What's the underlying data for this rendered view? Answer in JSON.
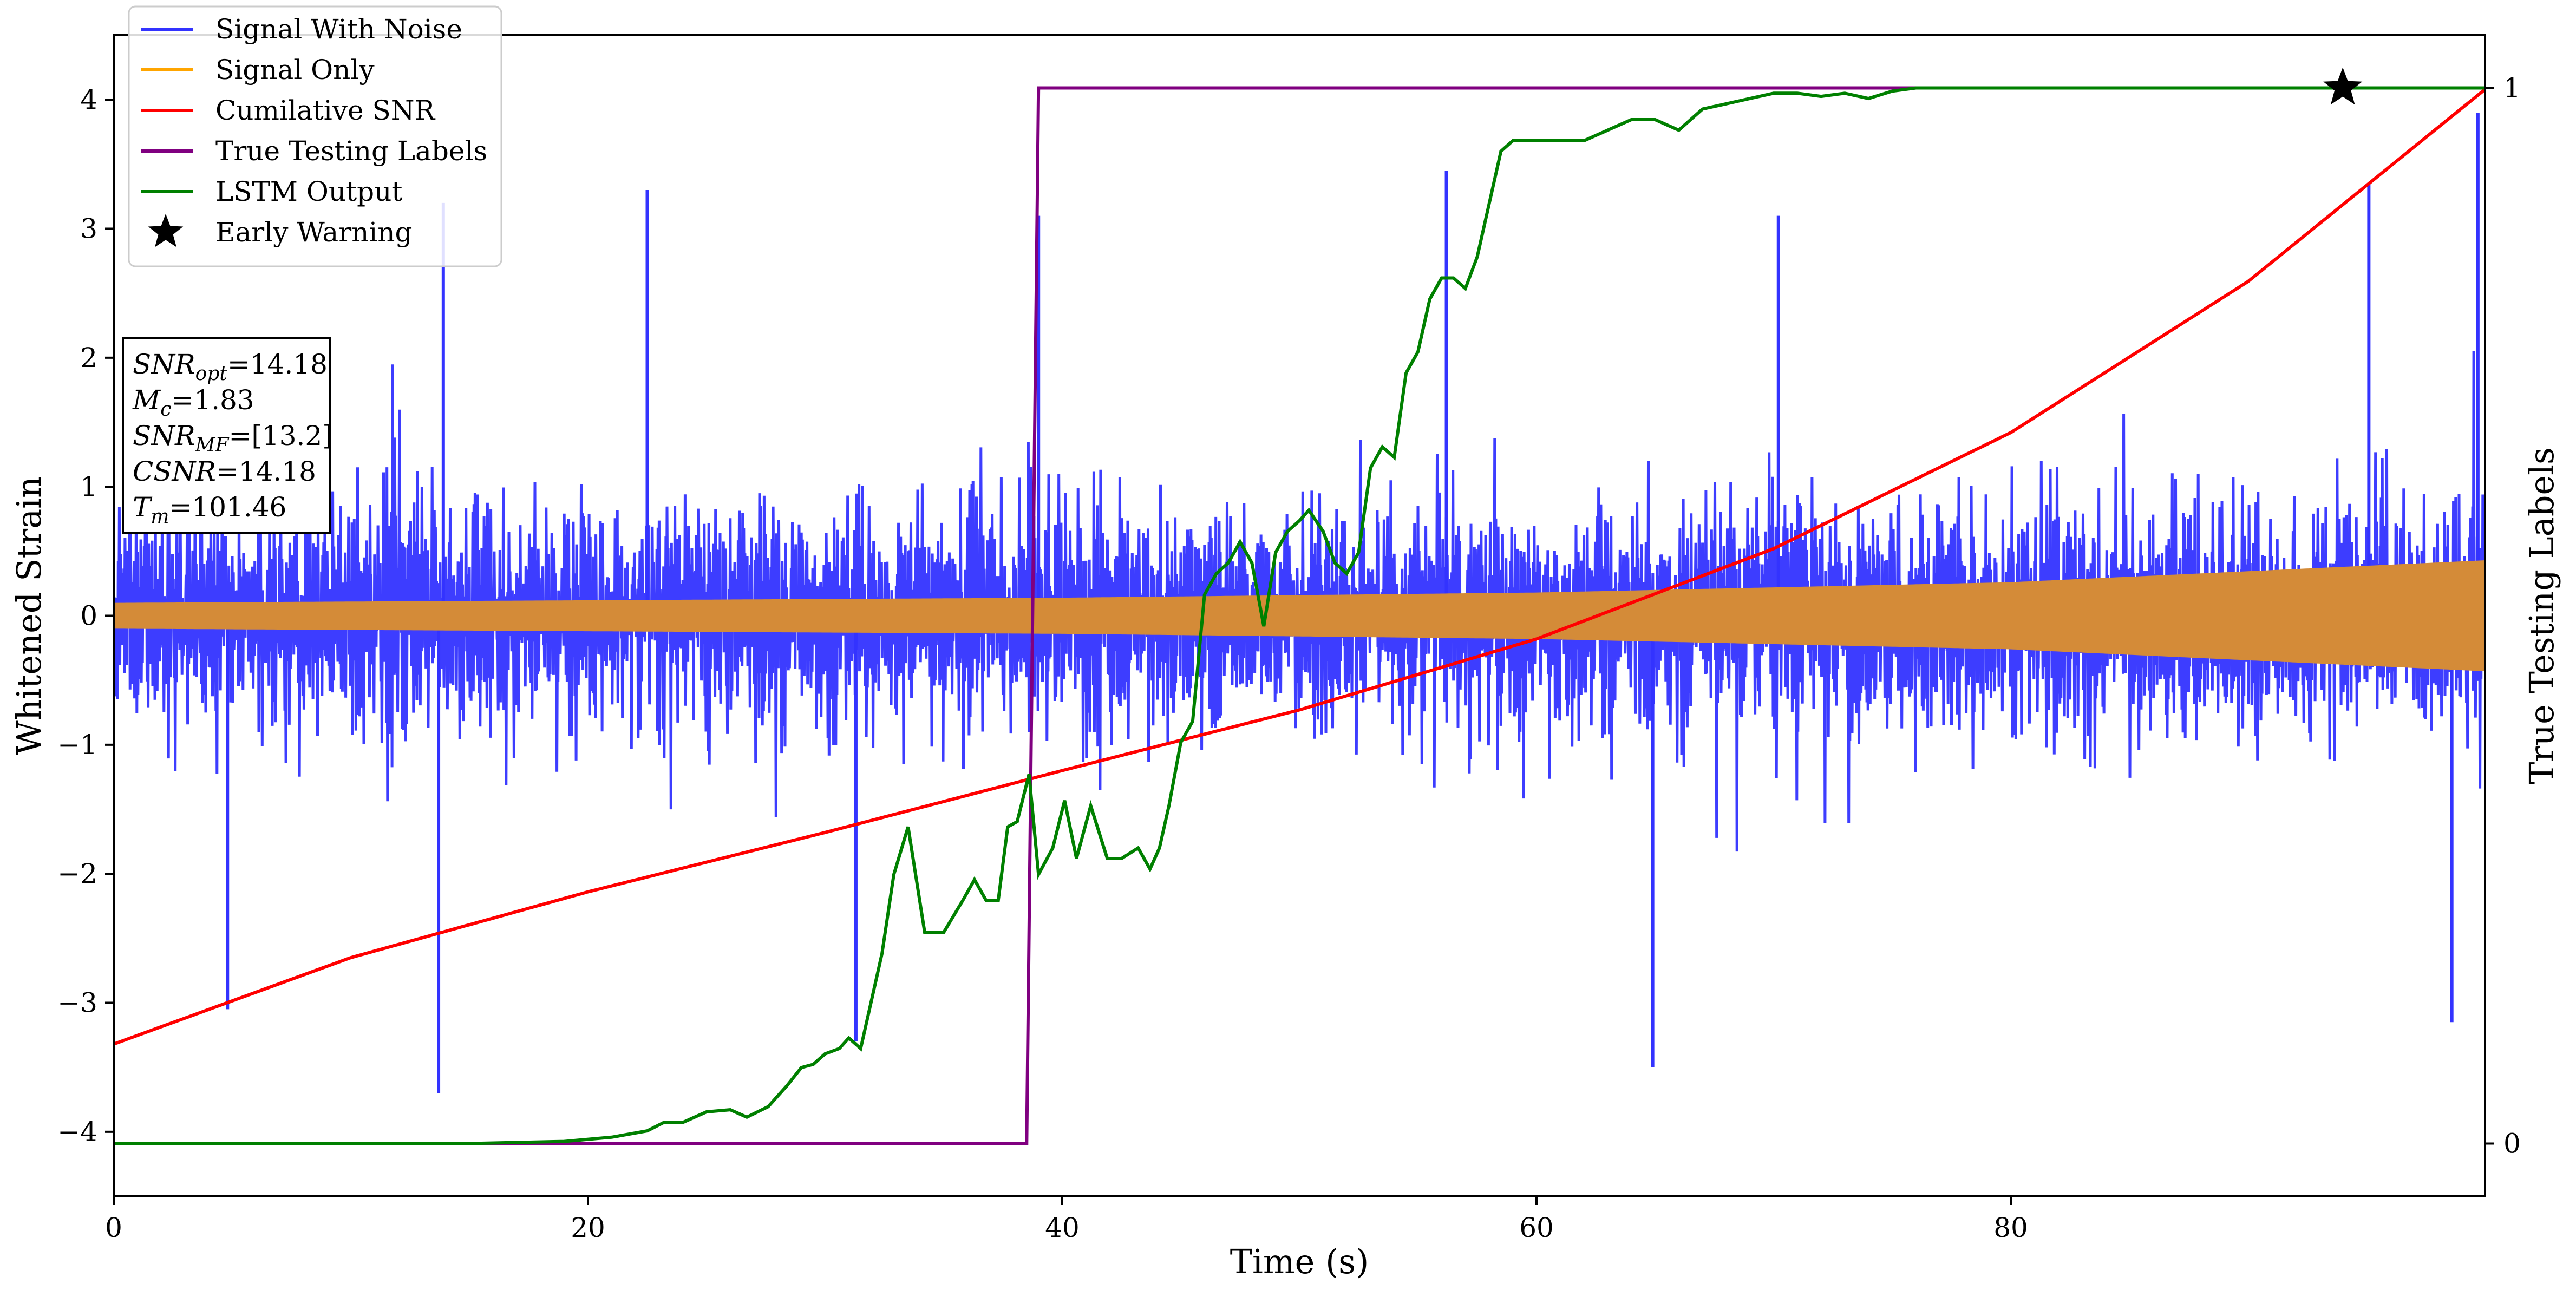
{
  "chart_data": {
    "type": "line",
    "xlabel": "Time (s)",
    "ylabel": "Whitened Strain",
    "ylabel_right": "True Testing Labels",
    "xlim": [
      0,
      100
    ],
    "ylim": [
      -4.5,
      4.5
    ],
    "ylim_right": [
      -0.05,
      1.05
    ],
    "x_ticks": [
      0,
      20,
      40,
      60,
      80
    ],
    "x_tick_labels": [
      "0",
      "20",
      "40",
      "60",
      "80"
    ],
    "y_ticks": [
      -4,
      -3,
      -2,
      -1,
      0,
      1,
      2,
      3,
      4
    ],
    "y_tick_labels": [
      "−4",
      "−3",
      "−2",
      "−1",
      "0",
      "1",
      "2",
      "3",
      "4"
    ],
    "y_right_ticks": [
      0,
      1
    ],
    "y_right_tick_labels": [
      "0",
      "1"
    ],
    "grid": false,
    "legend_position": "top-left",
    "legend": [
      {
        "label": "Signal With Noise",
        "color": "#3333ff",
        "marker": "line"
      },
      {
        "label": "Signal Only",
        "color": "#ffa500",
        "marker": "line"
      },
      {
        "label": "Cumilative SNR",
        "color": "#ff0000",
        "marker": "line"
      },
      {
        "label": "True Testing Labels",
        "color": "#800080",
        "marker": "line"
      },
      {
        "label": "LSTM Output",
        "color": "#008000",
        "marker": "line"
      },
      {
        "label": "Early Warning",
        "color": "#000000",
        "marker": "star"
      }
    ],
    "info_box": [
      {
        "main": "SNR",
        "sub": "opt",
        "rest": "=14.18"
      },
      {
        "main": "M",
        "sub": "c",
        "rest": "=1.83"
      },
      {
        "main": "SNR",
        "sub": "MF",
        "rest": "=[13.2]"
      },
      {
        "main": "CSNR",
        "sub": "",
        "rest": "=14.18"
      },
      {
        "main": "T",
        "sub": "m",
        "rest": "=101.46"
      }
    ],
    "series": [
      {
        "name": "Signal With Noise",
        "axis": "left",
        "color": "#3333ff",
        "description_level": "dense noisy oscillation, envelope approx ±2.2 with peaks to about ±3.5",
        "envelope_core": 1.0,
        "spikes": [
          {
            "x": 13.7,
            "y": -3.7
          },
          {
            "x": 13.9,
            "y": 3.2
          },
          {
            "x": 4.8,
            "y": -3.05
          },
          {
            "x": 22.5,
            "y": 3.3
          },
          {
            "x": 56.2,
            "y": 3.45
          },
          {
            "x": 64.9,
            "y": -3.5
          },
          {
            "x": 95.1,
            "y": 3.35
          },
          {
            "x": 98.6,
            "y": -3.15
          },
          {
            "x": 99.7,
            "y": 3.9
          },
          {
            "x": 31.3,
            "y": -3.3
          },
          {
            "x": 39.0,
            "y": 3.1
          },
          {
            "x": 70.2,
            "y": 3.1
          }
        ]
      },
      {
        "name": "Signal Only",
        "axis": "left",
        "color": "#d48b38",
        "envelope": {
          "x": [
            0,
            20,
            40,
            60,
            80,
            100
          ],
          "amplitude": [
            0.1,
            0.12,
            0.14,
            0.18,
            0.26,
            0.43
          ]
        }
      },
      {
        "name": "Cumilative SNR",
        "axis": "left",
        "color": "#ff0000",
        "x": [
          0,
          10,
          20,
          30,
          40,
          50,
          60,
          70,
          80,
          90,
          100
        ],
        "y": [
          -3.32,
          -2.65,
          -2.14,
          -1.68,
          -1.2,
          -0.73,
          -0.18,
          0.52,
          1.42,
          2.59,
          4.08
        ]
      },
      {
        "name": "True Testing Labels",
        "axis": "right",
        "color": "#800080",
        "x": [
          0,
          38.5,
          39.0,
          100
        ],
        "y": [
          0,
          0,
          1,
          1
        ]
      },
      {
        "name": "LSTM Output",
        "axis": "right",
        "color": "#008000",
        "x": [
          0,
          15,
          19,
          21,
          22.5,
          23.2,
          24,
          25,
          26,
          26.7,
          27.6,
          28.4,
          29,
          29.5,
          30,
          30.6,
          31,
          31.5,
          32,
          32.4,
          32.9,
          33.5,
          34.2,
          35,
          35.8,
          36.3,
          36.8,
          37.3,
          37.7,
          38.1,
          38.6,
          39.0,
          39.6,
          40.1,
          40.6,
          41.2,
          41.9,
          42.5,
          43.2,
          43.7,
          44.1,
          44.5,
          45,
          45.5,
          46,
          46.5,
          47,
          47.5,
          48,
          48.5,
          49,
          49.5,
          50,
          50.4,
          51,
          51.5,
          52,
          52.5,
          53,
          53.5,
          54,
          54.5,
          55,
          55.5,
          56,
          56.5,
          57,
          57.5,
          58,
          58.5,
          59,
          60,
          61,
          62,
          63,
          64,
          65,
          66,
          67,
          68,
          69,
          70,
          71,
          72,
          73,
          74,
          75,
          76,
          77,
          78,
          80,
          82,
          84,
          86,
          90,
          100
        ],
        "y": [
          0,
          0,
          0.002,
          0.006,
          0.012,
          0.02,
          0.02,
          0.03,
          0.032,
          0.025,
          0.035,
          0.055,
          0.072,
          0.075,
          0.085,
          0.09,
          0.1,
          0.09,
          0.14,
          0.18,
          0.255,
          0.3,
          0.2,
          0.2,
          0.23,
          0.25,
          0.23,
          0.23,
          0.3,
          0.305,
          0.35,
          0.255,
          0.28,
          0.325,
          0.27,
          0.32,
          0.27,
          0.27,
          0.28,
          0.26,
          0.28,
          0.32,
          0.38,
          0.4,
          0.52,
          0.54,
          0.55,
          0.57,
          0.55,
          0.49,
          0.56,
          0.58,
          0.59,
          0.6,
          0.58,
          0.55,
          0.54,
          0.56,
          0.64,
          0.66,
          0.65,
          0.73,
          0.75,
          0.8,
          0.82,
          0.82,
          0.81,
          0.84,
          0.89,
          0.94,
          0.95,
          0.95,
          0.95,
          0.95,
          0.96,
          0.97,
          0.97,
          0.96,
          0.98,
          0.985,
          0.99,
          0.995,
          0.995,
          0.992,
          0.995,
          0.99,
          0.997,
          1.0,
          1.0,
          1.0,
          1.0,
          1.0,
          1.0,
          1.0,
          1.0,
          1.0
        ]
      },
      {
        "name": "Early Warning",
        "axis": "right",
        "color": "#000000",
        "type": "marker",
        "points": [
          {
            "x": 94.0,
            "y": 1.0
          }
        ]
      }
    ]
  }
}
